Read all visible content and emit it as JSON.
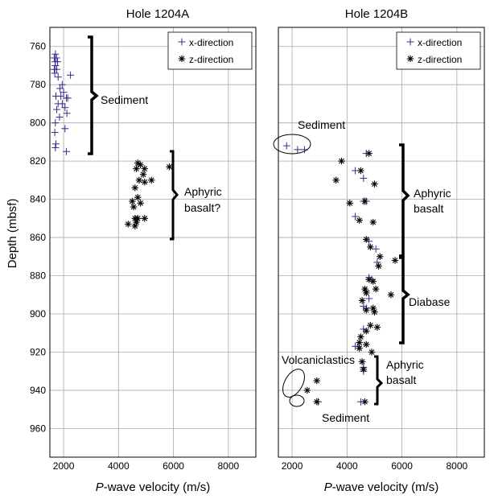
{
  "figure": {
    "ylabel": "Depth (mbsf)"
  },
  "chart_data": [
    {
      "type": "scatter",
      "title": "Hole 1204A",
      "xlabel_italic": "P",
      "xlabel_rest": "-wave velocity (m/s)",
      "ylabel": "Depth (mbsf)",
      "xlim": [
        1500,
        9000
      ],
      "ylim": [
        975,
        750
      ],
      "xticks": [
        2000,
        4000,
        6000,
        8000
      ],
      "yticks": [
        760,
        780,
        800,
        820,
        840,
        860,
        880,
        900,
        920,
        940,
        960
      ],
      "grid": true,
      "legend_position": "top-right",
      "series": [
        {
          "name": "x-direction",
          "marker": "plus",
          "color": "#3a2a8c",
          "points": [
            [
              1700,
              764
            ],
            [
              1660,
              766
            ],
            [
              1740,
              766
            ],
            [
              1690,
              768
            ],
            [
              1780,
              768
            ],
            [
              1700,
              770
            ],
            [
              1660,
              772
            ],
            [
              1750,
              772
            ],
            [
              1680,
              774
            ],
            [
              1800,
              776
            ],
            [
              2250,
              775
            ],
            [
              1950,
              780
            ],
            [
              1870,
              782
            ],
            [
              2000,
              784
            ],
            [
              1720,
              786
            ],
            [
              1900,
              786
            ],
            [
              2100,
              787
            ],
            [
              2150,
              787
            ],
            [
              1800,
              790
            ],
            [
              1950,
              790
            ],
            [
              2050,
              792
            ],
            [
              1750,
              793
            ],
            [
              2120,
              795
            ],
            [
              1850,
              797
            ],
            [
              1700,
              800
            ],
            [
              2050,
              803
            ],
            [
              1680,
              805
            ],
            [
              1720,
              811
            ],
            [
              1700,
              813
            ],
            [
              2100,
              815
            ]
          ]
        },
        {
          "name": "z-direction",
          "marker": "asterisk",
          "color": "#000000",
          "points": [
            [
              4700,
              821
            ],
            [
              4800,
              822
            ],
            [
              5850,
              823
            ],
            [
              4650,
              824
            ],
            [
              4950,
              824
            ],
            [
              4900,
              827
            ],
            [
              4750,
              830
            ],
            [
              5200,
              830
            ],
            [
              4950,
              831
            ],
            [
              4600,
              834
            ],
            [
              4700,
              839
            ],
            [
              4500,
              841
            ],
            [
              4800,
              842
            ],
            [
              4550,
              844
            ],
            [
              4600,
              850
            ],
            [
              4700,
              850
            ],
            [
              4950,
              850
            ],
            [
              4650,
              852
            ],
            [
              4350,
              853
            ],
            [
              4600,
              854
            ]
          ]
        }
      ],
      "annotations": [
        {
          "lines": [
            "Sediment"
          ],
          "brace_span": [
            757,
            817
          ]
        },
        {
          "lines": [
            "Aphyric",
            "basalt?"
          ],
          "brace_span": [
            818,
            862
          ]
        }
      ]
    },
    {
      "type": "scatter",
      "title": "Hole 1204B",
      "xlabel_italic": "P",
      "xlabel_rest": "-wave velocity (m/s)",
      "xlim": [
        1500,
        9000
      ],
      "ylim": [
        975,
        750
      ],
      "xticks": [
        2000,
        4000,
        6000,
        8000
      ],
      "yticks": [
        760,
        780,
        800,
        820,
        840,
        860,
        880,
        900,
        920,
        940,
        960
      ],
      "grid": true,
      "legend_position": "top-right",
      "series": [
        {
          "name": "x-direction",
          "marker": "plus",
          "color": "#3a2a8c",
          "points": [
            [
              1800,
              812
            ],
            [
              2200,
              814
            ],
            [
              2450,
              814
            ],
            [
              4700,
              816
            ],
            [
              4300,
              825
            ],
            [
              4600,
              829
            ],
            [
              4600,
              841
            ],
            [
              4700,
              841
            ],
            [
              4300,
              849
            ],
            [
              4800,
              862
            ],
            [
              5050,
              866
            ],
            [
              5100,
              873
            ],
            [
              4800,
              881
            ],
            [
              4900,
              882
            ],
            [
              4700,
              888
            ],
            [
              4800,
              892
            ],
            [
              4600,
              896
            ],
            [
              4700,
              897
            ],
            [
              4600,
              908
            ],
            [
              4400,
              917
            ],
            [
              4300,
              917
            ],
            [
              4600,
              928
            ],
            [
              4600,
              930
            ],
            [
              2950,
              946
            ],
            [
              4500,
              946
            ]
          ]
        },
        {
          "name": "z-direction",
          "marker": "asterisk",
          "color": "#000000",
          "points": [
            [
              4800,
              816
            ],
            [
              3800,
              820
            ],
            [
              4500,
              825
            ],
            [
              5000,
              832
            ],
            [
              3600,
              830
            ],
            [
              4650,
              841
            ],
            [
              4100,
              842
            ],
            [
              4450,
              851
            ],
            [
              4950,
              852
            ],
            [
              4700,
              861
            ],
            [
              4850,
              865
            ],
            [
              5200,
              870
            ],
            [
              5750,
              872
            ],
            [
              5150,
              875
            ],
            [
              4800,
              882
            ],
            [
              4950,
              883
            ],
            [
              4650,
              887
            ],
            [
              5050,
              887
            ],
            [
              4700,
              889
            ],
            [
              5600,
              890
            ],
            [
              4550,
              893
            ],
            [
              4950,
              897
            ],
            [
              4700,
              898
            ],
            [
              5000,
              899
            ],
            [
              4850,
              906
            ],
            [
              5100,
              907
            ],
            [
              4700,
              909
            ],
            [
              4500,
              912
            ],
            [
              4450,
              915
            ],
            [
              4700,
              916
            ],
            [
              4450,
              918
            ],
            [
              4900,
              920
            ],
            [
              4550,
              925
            ],
            [
              4600,
              929
            ],
            [
              2900,
              935
            ],
            [
              2550,
              940
            ],
            [
              2900,
              946
            ],
            [
              4650,
              946
            ]
          ]
        }
      ],
      "annotations": [
        {
          "lines": [
            "Sediment"
          ],
          "brace_span": null
        },
        {
          "lines": [
            "Aphyric",
            "basalt"
          ],
          "brace_span": [
            813,
            871
          ]
        },
        {
          "lines": [
            "Diabase"
          ],
          "brace_span": [
            871,
            914
          ]
        },
        {
          "lines": [
            "Volcaniclastics"
          ],
          "brace_span": null
        },
        {
          "lines": [
            "Aphyric",
            "basalt"
          ],
          "brace_span": [
            922,
            950
          ]
        },
        {
          "lines": [
            "Sediment"
          ],
          "brace_span": null
        }
      ]
    }
  ]
}
